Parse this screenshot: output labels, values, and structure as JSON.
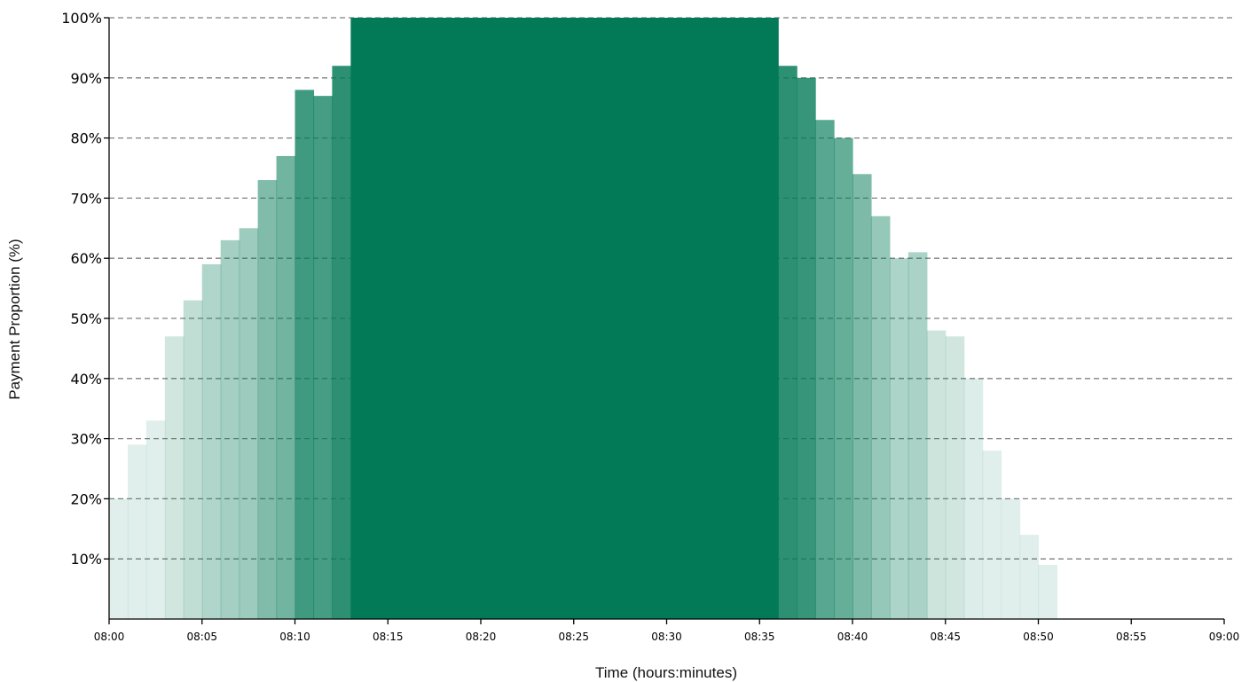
{
  "chart_data": {
    "type": "bar",
    "xlabel": "Time (hours:minutes)",
    "ylabel": "Payment Proportion (%)",
    "x_ticks": [
      "08:00",
      "08:05",
      "08:10",
      "08:15",
      "08:20",
      "08:25",
      "08:30",
      "08:35",
      "08:40",
      "08:45",
      "08:50",
      "08:55",
      "09:00"
    ],
    "y_ticks": [
      "10%",
      "20%",
      "30%",
      "40%",
      "50%",
      "60%",
      "70%",
      "80%",
      "90%",
      "100%"
    ],
    "xlim": [
      0,
      60
    ],
    "ylim": [
      0,
      100
    ],
    "bar_width_minutes": 1,
    "grid": "horizontal dashed",
    "base_color": "#037A57",
    "values": [
      20,
      29,
      33,
      47,
      53,
      59,
      63,
      65,
      73,
      77,
      88,
      87,
      92,
      100,
      100,
      100,
      100,
      100,
      100,
      100,
      100,
      100,
      100,
      100,
      100,
      100,
      100,
      100,
      100,
      100,
      100,
      100,
      100,
      100,
      100,
      100,
      92,
      90,
      83,
      80,
      74,
      67,
      60,
      61,
      48,
      47,
      40,
      28,
      20,
      14,
      9,
      0,
      0,
      0,
      0,
      0,
      0,
      0,
      0,
      0
    ]
  }
}
